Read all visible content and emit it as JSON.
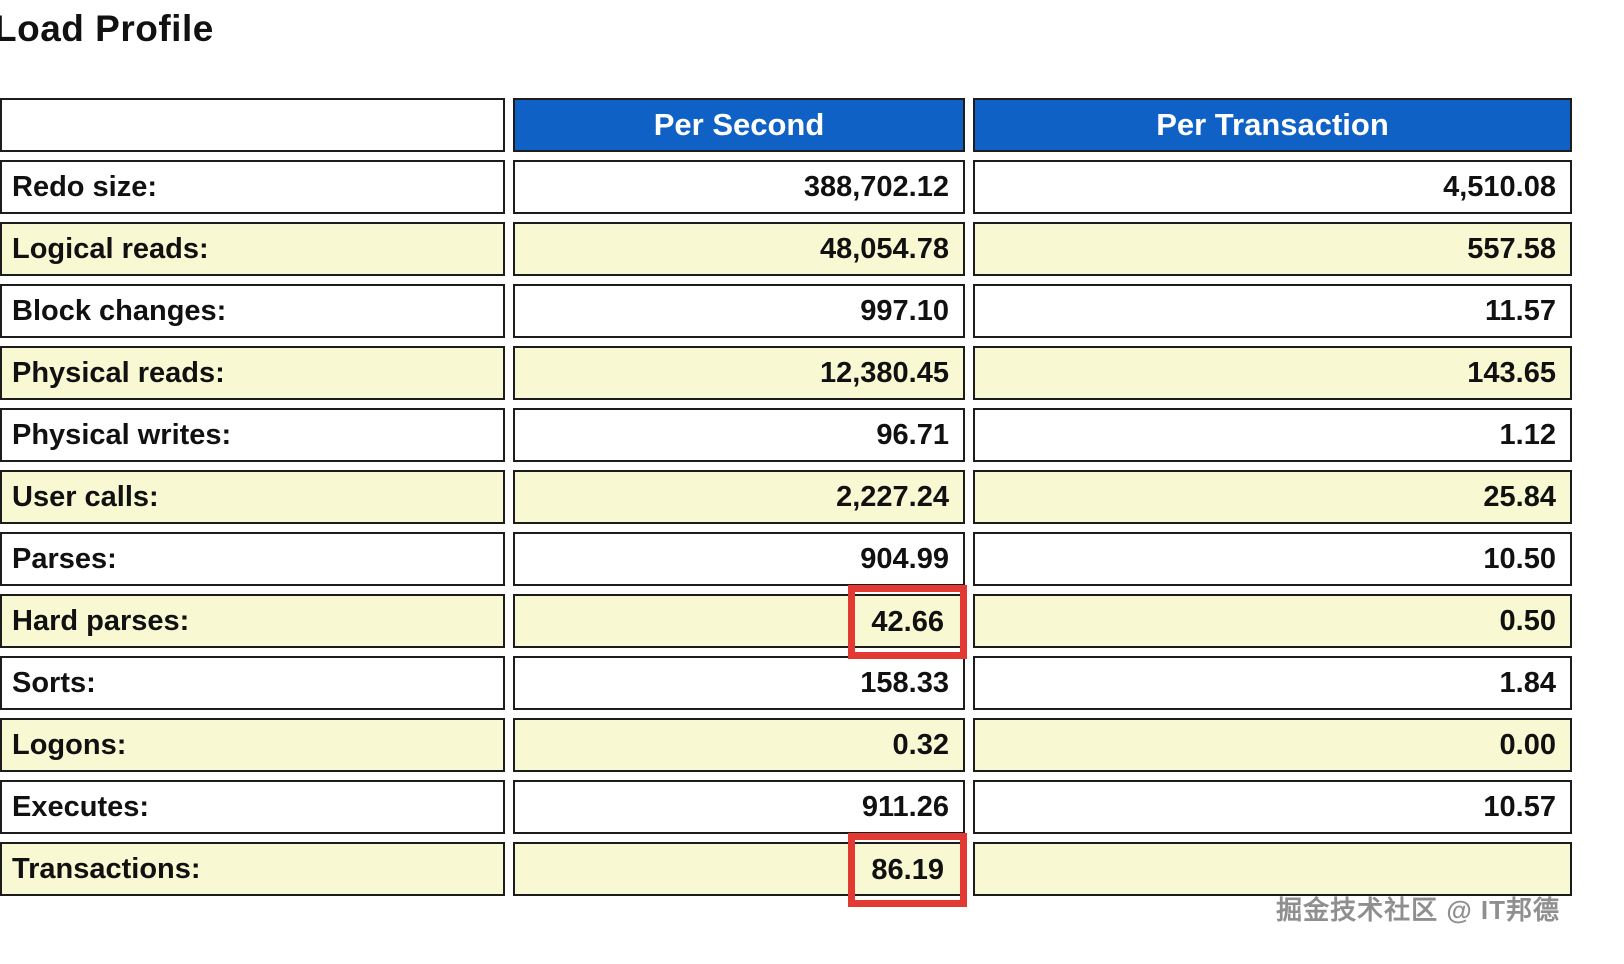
{
  "page": {
    "title": "Load Profile",
    "watermark": "掘金技术社区 @ IT邦德"
  },
  "colors": {
    "header_bg": "#1061c5",
    "row_alt_bg": "#f8f8d2",
    "highlight_border": "#e23a33"
  },
  "table": {
    "headers": {
      "corner": "",
      "per_second": "Per Second",
      "per_transaction": "Per Transaction"
    },
    "rows": [
      {
        "label": "Redo size:",
        "per_second": "388,702.12",
        "per_transaction": "4,510.08",
        "highlight": ""
      },
      {
        "label": "Logical reads:",
        "per_second": "48,054.78",
        "per_transaction": "557.58",
        "highlight": ""
      },
      {
        "label": "Block changes:",
        "per_second": "997.10",
        "per_transaction": "11.57",
        "highlight": ""
      },
      {
        "label": "Physical reads:",
        "per_second": "12,380.45",
        "per_transaction": "143.65",
        "highlight": ""
      },
      {
        "label": "Physical writes:",
        "per_second": "96.71",
        "per_transaction": "1.12",
        "highlight": ""
      },
      {
        "label": "User calls:",
        "per_second": "2,227.24",
        "per_transaction": "25.84",
        "highlight": ""
      },
      {
        "label": "Parses:",
        "per_second": "904.99",
        "per_transaction": "10.50",
        "highlight": ""
      },
      {
        "label": "Hard parses:",
        "per_second": "42.66",
        "per_transaction": "0.50",
        "highlight": "per_second"
      },
      {
        "label": "Sorts:",
        "per_second": "158.33",
        "per_transaction": "1.84",
        "highlight": ""
      },
      {
        "label": "Logons:",
        "per_second": "0.32",
        "per_transaction": "0.00",
        "highlight": ""
      },
      {
        "label": "Executes:",
        "per_second": "911.26",
        "per_transaction": "10.57",
        "highlight": ""
      },
      {
        "label": "Transactions:",
        "per_second": "86.19",
        "per_transaction": "",
        "highlight": "per_second"
      }
    ]
  }
}
